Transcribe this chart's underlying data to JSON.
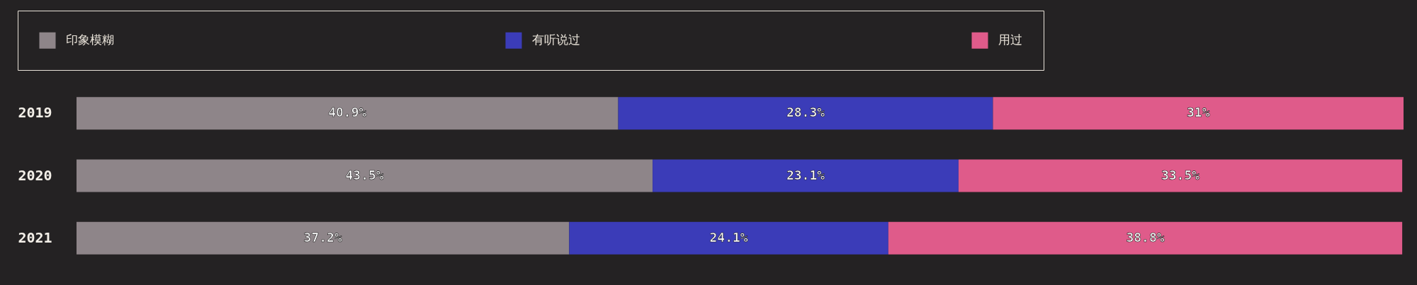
{
  "chart_data": {
    "type": "bar",
    "orientation": "horizontal",
    "stacked": true,
    "categories": [
      "2019",
      "2020",
      "2021"
    ],
    "series": [
      {
        "name": "印象模糊",
        "color": "#8e8589",
        "values": [
          40.9,
          43.5,
          37.2
        ],
        "value_labels": [
          "40.9%",
          "43.5%",
          "37.2%"
        ]
      },
      {
        "name": "有听说过",
        "color": "#3b3cb8",
        "values": [
          28.3,
          23.1,
          24.1
        ],
        "value_labels": [
          "28.3%",
          "23.1%",
          "24.1%"
        ]
      },
      {
        "name": "用过",
        "color": "#df5b8a",
        "values": [
          31,
          33.5,
          38.8
        ],
        "value_labels": [
          "31%",
          "33.5%",
          "38.8%"
        ]
      }
    ],
    "xlim": [
      0,
      100.2
    ],
    "tick_labels": "y",
    "legend": "top"
  }
}
